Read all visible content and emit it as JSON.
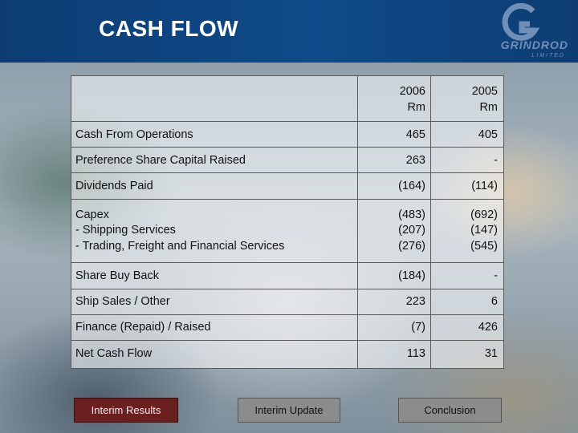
{
  "slide": {
    "title": "CASH FLOW"
  },
  "logo": {
    "name": "GRINDROD",
    "sub": "LIMITED"
  },
  "table": {
    "headers": [
      {
        "year": "2006",
        "unit": "Rm"
      },
      {
        "year": "2005",
        "unit": "Rm"
      }
    ],
    "rows": [
      {
        "label": "Cash From Operations",
        "v2006": "465",
        "v2005": "405"
      },
      {
        "label": "Preference Share Capital Raised",
        "v2006": "263",
        "v2005": "-"
      },
      {
        "label": "Dividends Paid",
        "v2006": "(164)",
        "v2005": "(114)"
      },
      {
        "label": "Capex",
        "v2006": "(483)",
        "v2005": "(692)"
      },
      {
        "label": "- Shipping Services",
        "v2006": "(207)",
        "v2005": "(147)"
      },
      {
        "label": "- Trading, Freight and Financial Services",
        "v2006": "(276)",
        "v2005": "(545)"
      },
      {
        "label": "Share Buy Back",
        "v2006": "(184)",
        "v2005": "-"
      },
      {
        "label": "Ship Sales / Other",
        "v2006": "223",
        "v2005": "6"
      },
      {
        "label": "Finance (Repaid) / Raised",
        "v2006": "(7)",
        "v2005": "426"
      },
      {
        "label": "Net Cash Flow",
        "v2006": "113",
        "v2005": "31"
      }
    ]
  },
  "nav": {
    "interim_results": "Interim Results",
    "interim_update": "Interim Update",
    "conclusion": "Conclusion"
  },
  "colors": {
    "header": "#0f4a8a",
    "active_button": "#6b2020",
    "inactive_button": "#8c8c8c"
  }
}
